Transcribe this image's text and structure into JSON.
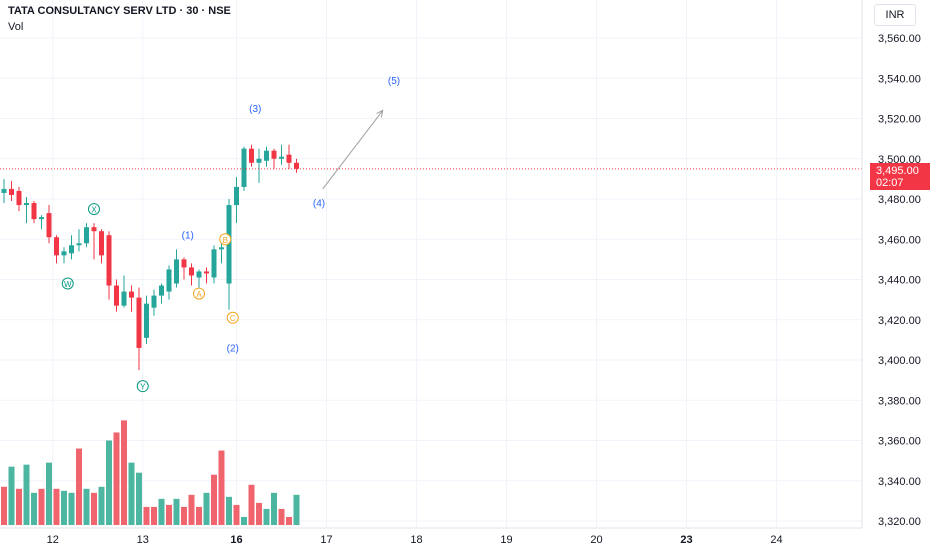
{
  "header": {
    "symbol": "TATA CONSULTANCY SERV LTD · 30 · NSE",
    "indicator": "Vol",
    "currency": "INR"
  },
  "last_price": {
    "value": "3,495.00",
    "countdown": "02:07"
  },
  "colors": {
    "up": "#26a69a",
    "down": "#f23645",
    "wave_blue": "#2962ff",
    "wave_orange": "#f5a623",
    "wave_green": "#089981",
    "volume_up": "#4db6a0",
    "volume_down": "#f0646e"
  },
  "chart_data": {
    "type": "candlestick",
    "price_ticks": [
      "3,560.00",
      "3,540.00",
      "3,520.00",
      "3,500.00",
      "3,480.00",
      "3,460.00",
      "3,440.00",
      "3,420.00",
      "3,400.00",
      "3,380.00",
      "3,360.00",
      "3,340.00",
      "3,320.00"
    ],
    "tick_values": [
      3560,
      3540,
      3520,
      3500,
      3480,
      3460,
      3440,
      3420,
      3400,
      3380,
      3360,
      3340,
      3320
    ],
    "x_labels": [
      {
        "label": "12",
        "bar": 6.5
      },
      {
        "label": "13",
        "bar": 18.5
      },
      {
        "label": "16",
        "bar": 31
      },
      {
        "label": "17",
        "bar": 43
      },
      {
        "label": "18",
        "bar": 55
      },
      {
        "label": "19",
        "bar": 67
      },
      {
        "label": "20",
        "bar": 79
      },
      {
        "label": "23",
        "bar": 91
      },
      {
        "label": "24",
        "bar": 103
      }
    ],
    "bold_x_labels": [
      "16",
      "23"
    ],
    "candles": [
      [
        3483,
        3490,
        3478,
        3485
      ],
      [
        3485,
        3489,
        3479,
        3482
      ],
      [
        3484,
        3486,
        3474,
        3477
      ],
      [
        3477,
        3481,
        3468,
        3478
      ],
      [
        3478,
        3479,
        3468,
        3470
      ],
      [
        3470,
        3472,
        3465,
        3471
      ],
      [
        3473,
        3477,
        3458,
        3461
      ],
      [
        3461,
        3462,
        3448,
        3452
      ],
      [
        3452,
        3456,
        3448,
        3454
      ],
      [
        3453,
        3462,
        3450,
        3457
      ],
      [
        3457,
        3465,
        3454,
        3458
      ],
      [
        3458,
        3468,
        3456,
        3466
      ],
      [
        3466,
        3468,
        3450,
        3464
      ],
      [
        3464,
        3465,
        3448,
        3452
      ],
      [
        3462,
        3464,
        3430,
        3437
      ],
      [
        3437,
        3440,
        3424,
        3427
      ],
      [
        3427,
        3442,
        3426,
        3434
      ],
      [
        3434,
        3437,
        3424,
        3431
      ],
      [
        3431,
        3436,
        3395,
        3406
      ],
      [
        3411,
        3432,
        3408,
        3428
      ],
      [
        3426,
        3435,
        3422,
        3432
      ],
      [
        3432,
        3438,
        3428,
        3437
      ],
      [
        3434,
        3447,
        3430,
        3445
      ],
      [
        3438,
        3455,
        3436,
        3450
      ],
      [
        3450,
        3451,
        3440,
        3446
      ],
      [
        3446,
        3448,
        3437,
        3442
      ],
      [
        3441,
        3445,
        3436,
        3444
      ],
      [
        3444,
        3446,
        3438,
        3443
      ],
      [
        3441,
        3457,
        3438,
        3455
      ],
      [
        3455,
        3458,
        3448,
        3456
      ],
      [
        3438,
        3480,
        3425,
        3477
      ],
      [
        3477,
        3491,
        3468,
        3486
      ],
      [
        3486,
        3506,
        3484,
        3505
      ],
      [
        3505,
        3507,
        3496,
        3498
      ],
      [
        3498,
        3505,
        3488,
        3500
      ],
      [
        3499,
        3506,
        3496,
        3504
      ],
      [
        3504,
        3505,
        3495,
        3500
      ],
      [
        3500,
        3507,
        3497,
        3501
      ],
      [
        3502,
        3507,
        3495,
        3498
      ],
      [
        3498,
        3500,
        3493,
        3495
      ]
    ],
    "volumes": [
      [
        3337,
        0
      ],
      [
        3347,
        1
      ],
      [
        3336,
        0
      ],
      [
        3348,
        1
      ],
      [
        3334,
        1
      ],
      [
        3336,
        0
      ],
      [
        3349,
        1
      ],
      [
        3336,
        0
      ],
      [
        3335,
        1
      ],
      [
        3334,
        1
      ],
      [
        3356,
        0
      ],
      [
        3336,
        1
      ],
      [
        3334,
        0
      ],
      [
        3337,
        1
      ],
      [
        3360,
        1
      ],
      [
        3364,
        0
      ],
      [
        3370,
        0
      ],
      [
        3349,
        1
      ],
      [
        3344,
        1
      ],
      [
        3327,
        0
      ],
      [
        3327,
        0
      ],
      [
        3331,
        1
      ],
      [
        3328,
        0
      ],
      [
        3331,
        1
      ],
      [
        3327,
        0
      ],
      [
        3333,
        0
      ],
      [
        3327,
        0
      ],
      [
        3334,
        1
      ],
      [
        3343,
        0
      ],
      [
        3355,
        0
      ],
      [
        3332,
        1
      ],
      [
        3328,
        0
      ],
      [
        3322,
        1
      ],
      [
        3338,
        0
      ],
      [
        3329,
        0
      ],
      [
        3326,
        1
      ],
      [
        3334,
        1
      ],
      [
        3326,
        0
      ],
      [
        3322,
        0
      ],
      [
        3333,
        1
      ]
    ],
    "wave_labels": [
      {
        "text": "(1)",
        "bar": 24.5,
        "price": 3462,
        "style": "blue"
      },
      {
        "text": "(2)",
        "bar": 30.5,
        "price": 3406,
        "style": "blue"
      },
      {
        "text": "(3)",
        "bar": 33.5,
        "price": 3525,
        "style": "blue"
      },
      {
        "text": "(4)",
        "bar": 42.0,
        "price": 3478,
        "style": "blue"
      },
      {
        "text": "(5)",
        "bar": 52.0,
        "price": 3539,
        "style": "blue"
      },
      {
        "text": "W",
        "bar": 8.5,
        "price": 3438,
        "style": "green"
      },
      {
        "text": "X",
        "bar": 12.0,
        "price": 3475,
        "style": "green"
      },
      {
        "text": "Y",
        "bar": 18.5,
        "price": 3387,
        "style": "green"
      },
      {
        "text": "A",
        "bar": 26.0,
        "price": 3433,
        "style": "orange"
      },
      {
        "text": "B",
        "bar": 29.5,
        "price": 3460,
        "style": "orange"
      },
      {
        "text": "C",
        "bar": 30.5,
        "price": 3421,
        "style": "orange"
      }
    ],
    "projection": {
      "from_bar": 42.5,
      "from_price": 3485,
      "to_bar": 50.5,
      "to_price": 3524
    },
    "last_price_value": 3495
  }
}
